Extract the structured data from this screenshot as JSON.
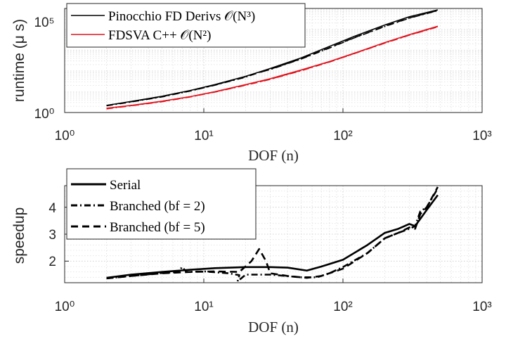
{
  "chart_data": [
    {
      "type": "line",
      "xscale": "log",
      "yscale": "log",
      "xlim": [
        1,
        1000
      ],
      "ylim": [
        1,
        100000
      ],
      "xlabel": "DOF (n)",
      "ylabel": "runtime (μ s)",
      "xticks": [
        "10⁰",
        "10¹",
        "10²",
        "10³"
      ],
      "yticks": [
        "10⁰",
        "10⁵"
      ],
      "grid": true,
      "legend": "top-left",
      "legend_entries": [
        {
          "label": "Pinocchio FD Derivs 𝒪(N³)",
          "color": "#000000",
          "style": "solid"
        },
        {
          "label": "FDSVA C++ 𝒪(N²)",
          "color": "#e0141e",
          "style": "solid"
        }
      ],
      "series": [
        {
          "name": "Pinocchio FD Derivs 𝒪(N³)",
          "color": "#000000",
          "dash": "solid",
          "x": [
            2,
            3,
            5,
            8,
            12,
            20,
            30,
            50,
            80,
            120,
            200,
            300,
            480
          ],
          "y": [
            2.2,
            3.4,
            6.0,
            11.5,
            22,
            55,
            130,
            420,
            1500,
            4500,
            16000,
            40000,
            85000
          ]
        },
        {
          "name": "",
          "color": "#000000",
          "dash": "dashed",
          "x": [
            2,
            3,
            5,
            8,
            12,
            20,
            30,
            50,
            80,
            120,
            200,
            300,
            480
          ],
          "y": [
            2.2,
            3.3,
            5.8,
            11,
            21,
            52,
            120,
            380,
            1300,
            3900,
            14000,
            35000,
            80000
          ]
        },
        {
          "name": "",
          "color": "#000000",
          "dash": "dashdot",
          "x": [
            2,
            3,
            5,
            8,
            12,
            20,
            25,
            30,
            50,
            80,
            120,
            200,
            300,
            480
          ],
          "y": [
            2.1,
            3.2,
            5.6,
            10.8,
            20.5,
            50,
            85,
            115,
            370,
            1250,
            3800,
            13500,
            34000,
            78000
          ]
        },
        {
          "name": "FDSVA C++ 𝒪(N²)",
          "color": "#e0141e",
          "dash": "solid",
          "x": [
            2,
            3,
            5,
            8,
            12,
            20,
            30,
            50,
            80,
            120,
            200,
            300,
            480
          ],
          "y": [
            1.6,
            2.2,
            3.5,
            5.8,
            10,
            22,
            42,
            110,
            280,
            700,
            2300,
            5500,
            14000
          ]
        },
        {
          "name": "",
          "color": "#e0141e",
          "dash": "dashed",
          "x": [
            2,
            3,
            5,
            8,
            12,
            20,
            30,
            50,
            80,
            120,
            200,
            300,
            480
          ],
          "y": [
            1.55,
            2.15,
            3.4,
            5.7,
            9.8,
            21,
            40,
            105,
            270,
            680,
            2200,
            5300,
            13500
          ]
        },
        {
          "name": "",
          "color": "#e0141e",
          "dash": "dashdot",
          "x": [
            2,
            3,
            5,
            8,
            12,
            20,
            30,
            50,
            80,
            120,
            200,
            300,
            480
          ],
          "y": [
            1.5,
            2.1,
            3.3,
            5.6,
            9.6,
            20.5,
            39,
            102,
            265,
            670,
            2150,
            5200,
            13000
          ]
        }
      ]
    },
    {
      "type": "line",
      "xscale": "log",
      "yscale": "linear",
      "xlim": [
        1,
        1000
      ],
      "ylim": [
        1.2,
        4.8
      ],
      "xlabel": "DOF (n)",
      "ylabel": "speedup",
      "xticks": [
        "10⁰",
        "10¹",
        "10²",
        "10³"
      ],
      "yticks": [
        "2",
        "3",
        "4"
      ],
      "grid": true,
      "legend": "top-left",
      "series": [
        {
          "name": "Serial",
          "dash": "solid",
          "x": [
            2,
            3,
            5,
            8,
            12,
            20,
            30,
            40,
            55,
            70,
            100,
            150,
            200,
            250,
            300,
            330,
            400,
            480
          ],
          "y": [
            1.38,
            1.5,
            1.6,
            1.68,
            1.74,
            1.78,
            1.78,
            1.76,
            1.65,
            1.8,
            2.05,
            2.6,
            3.05,
            3.2,
            3.38,
            3.3,
            3.9,
            4.45
          ]
        },
        {
          "name": "Branched (bf = 2)",
          "dash": "dashdot",
          "x": [
            2,
            3,
            5,
            6.5,
            7,
            7.5,
            10,
            15,
            18,
            17.5,
            20,
            30,
            50,
            65,
            80,
            100,
            150,
            200,
            250,
            300,
            330,
            360,
            400,
            480
          ],
          "y": [
            1.36,
            1.45,
            1.56,
            1.6,
            1.78,
            1.6,
            1.62,
            1.55,
            1.48,
            1.25,
            1.5,
            1.5,
            1.4,
            1.4,
            1.55,
            1.78,
            2.3,
            2.85,
            3.05,
            3.2,
            3.3,
            3.85,
            4.0,
            4.7
          ]
        },
        {
          "name": "Branched (bf = 5)",
          "dash": "dashed",
          "x": [
            2,
            3,
            5,
            8,
            12,
            18,
            22,
            25,
            28,
            30,
            40,
            55,
            70,
            100,
            150,
            200,
            250,
            300,
            330,
            360,
            400,
            480
          ],
          "y": [
            1.36,
            1.45,
            1.55,
            1.6,
            1.62,
            1.6,
            2.0,
            2.45,
            2.0,
            1.55,
            1.45,
            1.38,
            1.45,
            1.72,
            2.3,
            2.85,
            3.05,
            3.25,
            3.2,
            3.75,
            4.0,
            4.75
          ]
        }
      ]
    }
  ]
}
